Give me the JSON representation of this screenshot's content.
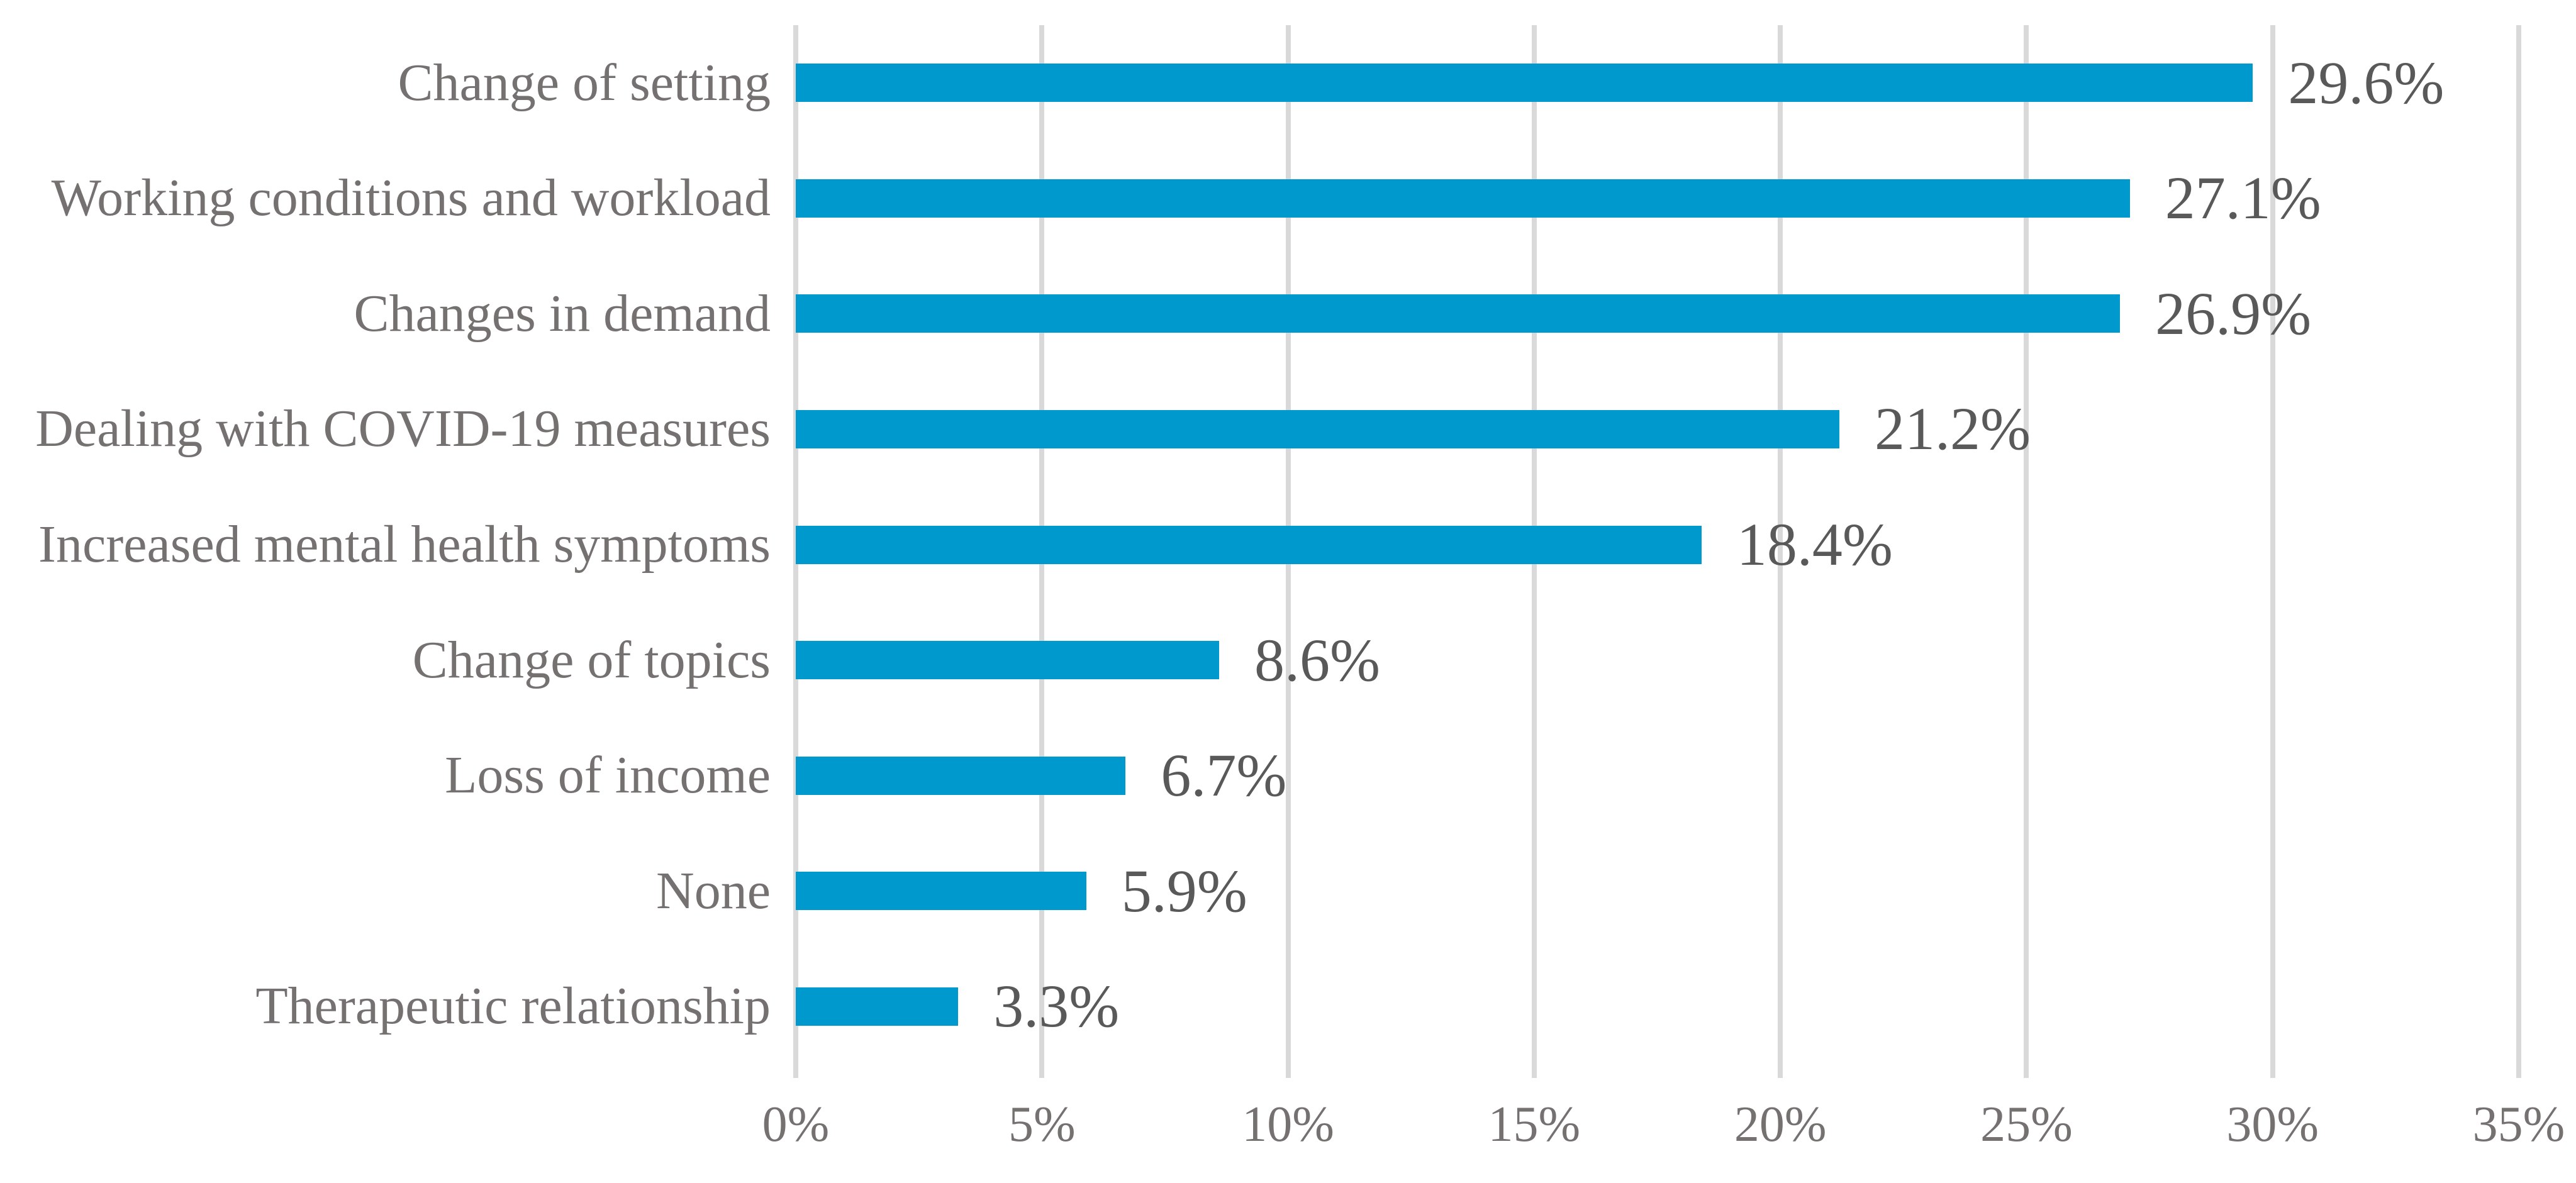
{
  "chart_data": {
    "type": "bar",
    "orientation": "horizontal",
    "title": "",
    "xlabel": "",
    "ylabel": "",
    "categories": [
      "Change of setting",
      "Working conditions and workload",
      "Changes in demand",
      "Dealing with COVID-19 measures",
      "Increased mental health symptoms",
      "Change of topics",
      "Loss of income",
      "None",
      "Therapeutic relationship"
    ],
    "values": [
      29.6,
      27.1,
      26.9,
      21.2,
      18.4,
      8.6,
      6.7,
      5.9,
      3.3
    ],
    "value_labels": [
      "29.6%",
      "27.1%",
      "26.9%",
      "21.2%",
      "18.4%",
      "8.6%",
      "6.7%",
      "5.9%",
      "3.3%"
    ],
    "x_ticks": [
      "0%",
      "5%",
      "10%",
      "15%",
      "20%",
      "25%",
      "30%",
      "35%"
    ],
    "xlim": [
      0,
      35
    ],
    "grid": true,
    "legend": false,
    "colors": {
      "bar": "#0099CD",
      "gridline": "#D9D9D9",
      "category_text": "#767171",
      "tick_text": "#767171",
      "value_text": "#595959",
      "background": "#FFFFFF"
    }
  }
}
